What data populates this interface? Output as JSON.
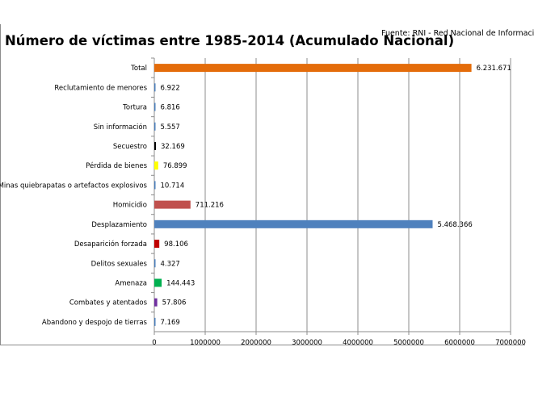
{
  "chart_data": {
    "type": "bar",
    "orientation": "horizontal",
    "title": "Número de víctimas entre 1985-2014 (Acumulado Nacional)",
    "source": "Fuente: RNI - Red Nacional de Informaci",
    "categories": [
      "Total",
      "Reclutamiento de menores",
      "Tortura",
      "Sin información",
      "Secuestro",
      "Pérdida de bienes",
      "Minas quiebrapatas o artefactos explosivos",
      "Homicidio",
      "Desplazamiento",
      "Desaparición forzada",
      "Delitos sexuales",
      "Amenaza",
      "Combates y atentados",
      "Abandono y despojo de tierras"
    ],
    "values": [
      6231671,
      6922,
      6816,
      5557,
      32169,
      76899,
      10714,
      711216,
      5468366,
      98106,
      4327,
      144443,
      57806,
      7169
    ],
    "value_labels": [
      "6.231.671",
      "6.922",
      "6.816",
      "5.557",
      "32.169",
      "76.899",
      "10.714",
      "711.216",
      "5.468.366",
      "98.106",
      "4.327",
      "144.443",
      "57.806",
      "7.169"
    ],
    "colors": [
      "#e46c0a",
      "#4a7ebb",
      "#4a7ebb",
      "#4a7ebb",
      "#000000",
      "#ffff00",
      "#4a7ebb",
      "#c0504d",
      "#4f81bd",
      "#c00000",
      "#4a7ebb",
      "#00b050",
      "#7030a0",
      "#4a7ebb"
    ],
    "xlim": [
      0,
      7000000
    ],
    "x_ticks": [
      0,
      1000000,
      2000000,
      3000000,
      4000000,
      5000000,
      6000000,
      7000000
    ],
    "x_tick_labels": [
      "0",
      "1000000",
      "2000000",
      "3000000",
      "4000000",
      "5000000",
      "6000000",
      "7000000"
    ],
    "grid": true,
    "xlabel": "",
    "ylabel": ""
  }
}
